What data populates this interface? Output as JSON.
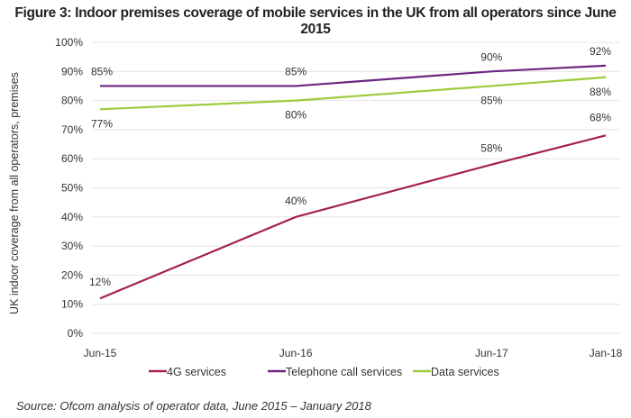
{
  "chart_data": {
    "type": "line",
    "title": "Figure 3: Indoor premises coverage of mobile services in the UK from all operators since June 2015",
    "ylabel": "UK indoor coverage from all operators, premises",
    "xlabel": "",
    "categories": [
      "Jun-15",
      "Jun-16",
      "Jun-17",
      "Jan-18"
    ],
    "x_months": [
      0,
      12,
      24,
      31
    ],
    "ylim": [
      0,
      100
    ],
    "yticks": [
      "0%",
      "10%",
      "20%",
      "30%",
      "40%",
      "50%",
      "60%",
      "70%",
      "80%",
      "90%",
      "100%"
    ],
    "grid": true,
    "legend_position": "bottom",
    "series": [
      {
        "name": "4G services",
        "values": [
          12,
          40,
          58,
          68
        ],
        "labels": [
          "12%",
          "40%",
          "58%",
          "68%"
        ],
        "color": "#a3224b"
      },
      {
        "name": "Telephone call services",
        "values": [
          85,
          85,
          90,
          92
        ],
        "labels": [
          "85%",
          "85%",
          "90%",
          "92%"
        ],
        "color": "#6e2580"
      },
      {
        "name": "Data services",
        "values": [
          77,
          80,
          85,
          88
        ],
        "labels": [
          "77%",
          "80%",
          "85%",
          "88%"
        ],
        "color": "#9dcb3c"
      }
    ],
    "source": "Source: Ofcom analysis of operator data, June 2015 – January 2018"
  }
}
